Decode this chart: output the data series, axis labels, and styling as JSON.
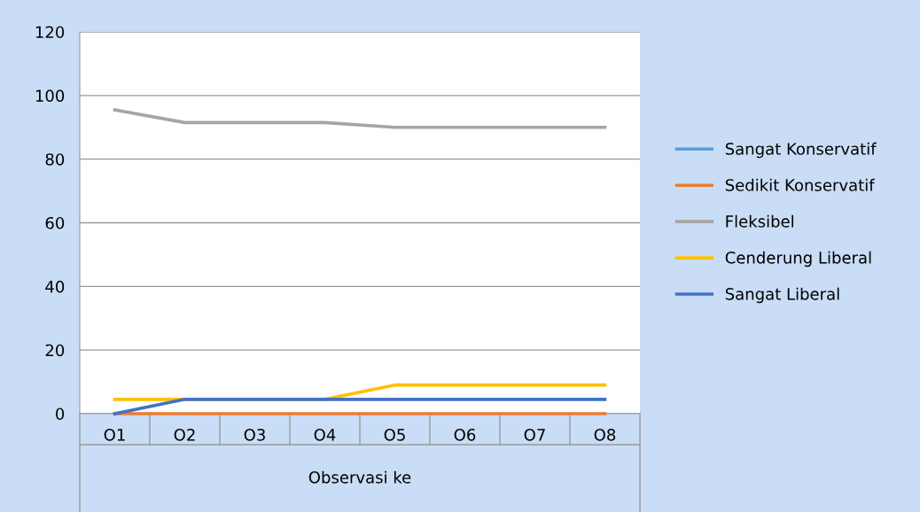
{
  "chart_data": {
    "type": "line",
    "xlabel": "Observasi ke",
    "categories": [
      "O1",
      "O2",
      "O3",
      "O4",
      "O5",
      "O6",
      "O7",
      "O8"
    ],
    "series": [
      {
        "name": "Sangat Konservatif",
        "color": "#5b9bd5",
        "values": [
          null,
          null,
          null,
          null,
          null,
          null,
          null,
          null
        ]
      },
      {
        "name": "Sedikit Konservatif",
        "color": "#ed7d31",
        "values": [
          0,
          0,
          0,
          0,
          0,
          0,
          0,
          0
        ]
      },
      {
        "name": "Fleksibel",
        "color": "#a5a5a5",
        "values": [
          95.5,
          91.5,
          91.5,
          91.5,
          90,
          90,
          90,
          90
        ]
      },
      {
        "name": "Cenderung Liberal",
        "color": "#ffc000",
        "values": [
          4.5,
          4.5,
          4.5,
          4.5,
          9,
          9,
          9,
          9
        ]
      },
      {
        "name": "Sangat Liberal",
        "color": "#4472c4",
        "values": [
          0,
          4.5,
          4.5,
          4.5,
          4.5,
          4.5,
          4.5,
          4.5
        ]
      }
    ],
    "ylim": [
      0,
      120
    ],
    "yticks": [
      0,
      20,
      40,
      60,
      80,
      100,
      120
    ],
    "grid": "y",
    "legend": "right",
    "marker": "none",
    "line_style": "solid"
  }
}
